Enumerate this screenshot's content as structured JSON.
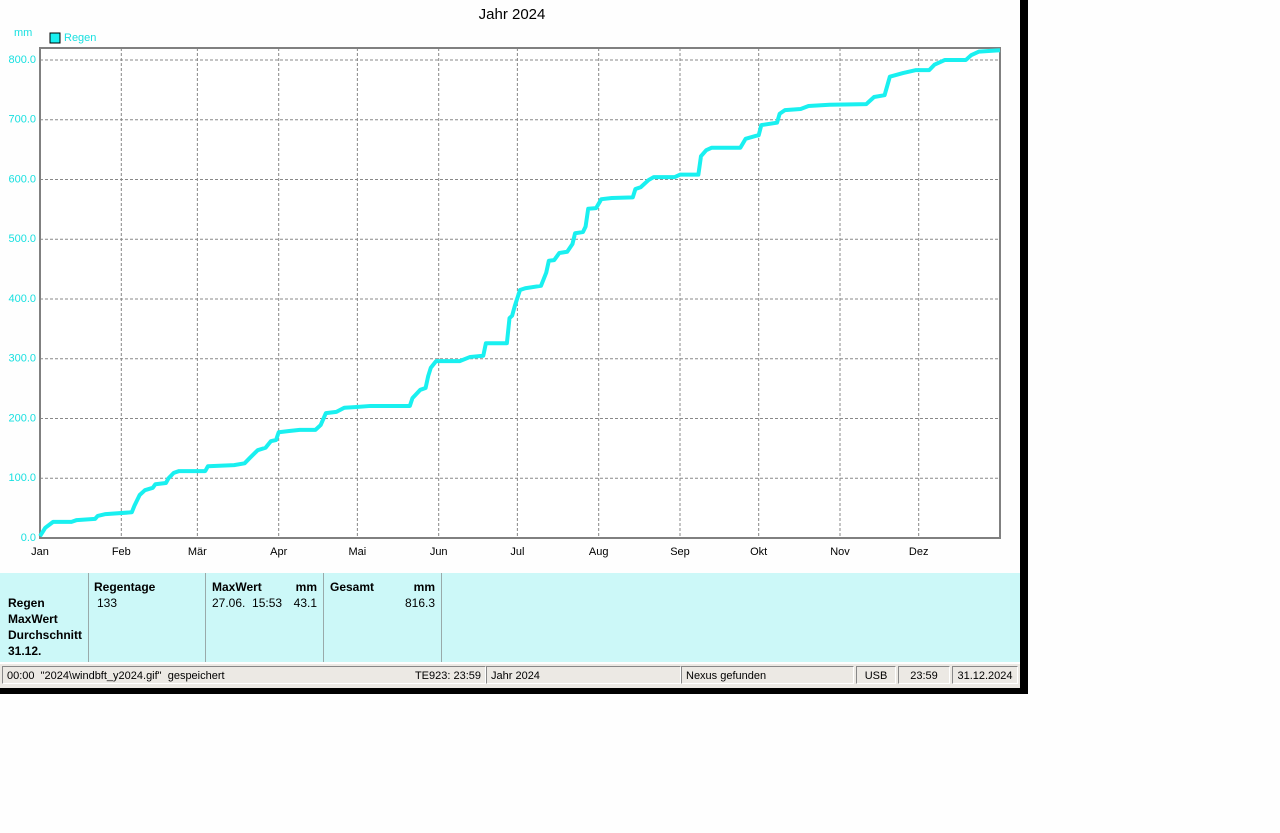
{
  "chart_data": {
    "type": "line",
    "title": "Jahr 2024",
    "y_unit": "mm",
    "grid": true,
    "legend": "top-left",
    "x": [
      0,
      2,
      5,
      12,
      14,
      21,
      22,
      25,
      35,
      36,
      38,
      40,
      43,
      44,
      48,
      49,
      51,
      53,
      63,
      64,
      74,
      78,
      80,
      83,
      86,
      88,
      90,
      91,
      95,
      99,
      105,
      107,
      109,
      113,
      116,
      120,
      126,
      141,
      142,
      145,
      147,
      148,
      149,
      151,
      160,
      164,
      169,
      170,
      178,
      179,
      180,
      181,
      183,
      185,
      191,
      193,
      194,
      196,
      198,
      201,
      203,
      204,
      207,
      208,
      209,
      212,
      214,
      218,
      226,
      227,
      229,
      232,
      234,
      242,
      244,
      251,
      252,
      254,
      256,
      267,
      269,
      273,
      274,
      275,
      281,
      282,
      284,
      290,
      293,
      301,
      315,
      316,
      318,
      322,
      324,
      329,
      334,
      339,
      341,
      345,
      353,
      355,
      358,
      366
    ],
    "series": [
      {
        "name": "Regen",
        "color": "#19f0f0",
        "values": [
          3,
          17,
          27,
          27,
          30,
          32,
          37,
          40,
          43,
          54,
          72,
          80,
          84,
          90,
          92,
          100,
          109,
          112,
          112,
          120,
          122,
          125,
          134,
          147,
          151,
          162,
          164,
          177,
          179,
          181,
          181,
          189,
          209,
          211,
          218,
          219,
          221,
          221,
          234,
          248,
          251,
          271,
          285,
          296,
          296,
          303,
          305,
          326,
          326,
          368,
          372,
          388,
          415,
          418,
          422,
          444,
          464,
          465,
          477,
          479,
          492,
          510,
          512,
          521,
          551,
          552,
          567,
          569,
          570,
          584,
          587,
          599,
          604,
          604,
          608,
          608,
          639,
          649,
          653,
          653,
          668,
          673,
          674,
          691,
          695,
          710,
          716,
          718,
          723,
          725,
          726,
          730,
          738,
          741,
          772,
          778,
          783,
          783,
          792,
          800,
          800,
          808,
          814,
          816.3
        ]
      }
    ],
    "xlim": [
      0,
      366
    ],
    "xticks": [
      {
        "value": 0,
        "label": "Jan"
      },
      {
        "value": 31,
        "label": "Feb"
      },
      {
        "value": 60,
        "label": "Mär"
      },
      {
        "value": 91,
        "label": "Apr"
      },
      {
        "value": 121,
        "label": "Mai"
      },
      {
        "value": 152,
        "label": "Jun"
      },
      {
        "value": 182,
        "label": "Jul"
      },
      {
        "value": 213,
        "label": "Aug"
      },
      {
        "value": 244,
        "label": "Sep"
      },
      {
        "value": 274,
        "label": "Okt"
      },
      {
        "value": 305,
        "label": "Nov"
      },
      {
        "value": 335,
        "label": "Dez"
      }
    ],
    "ylim": [
      0,
      820
    ],
    "yticks": [
      {
        "value": 0,
        "label": "0.0"
      },
      {
        "value": 100,
        "label": "100.0"
      },
      {
        "value": 200,
        "label": "200.0"
      },
      {
        "value": 300,
        "label": "300.0"
      },
      {
        "value": 400,
        "label": "400.0"
      },
      {
        "value": 500,
        "label": "500.0"
      },
      {
        "value": 600,
        "label": "600.0"
      },
      {
        "value": 700,
        "label": "700.0"
      },
      {
        "value": 800,
        "label": "800.0"
      }
    ]
  },
  "summary": {
    "row_labels": [
      "Regen",
      "MaxWert",
      "Durchschnitt",
      "31.12."
    ],
    "regentage": {
      "header": "Regentage",
      "value": "133"
    },
    "maxwert": {
      "header": "MaxWert",
      "unit": "mm",
      "date": "27.06.  15:53",
      "value": "43.1"
    },
    "gesamt": {
      "header": "Gesamt",
      "unit": "mm",
      "value": "816.3"
    }
  },
  "status_bar": {
    "message": "00:00  \"2024\\windbft_y2024.gif\"  gespeichert",
    "station": "TE923: 23:59",
    "period": "Jahr 2024",
    "connection": "Nexus gefunden",
    "interface": "USB",
    "time": "23:59",
    "date": "31.12.2024"
  }
}
